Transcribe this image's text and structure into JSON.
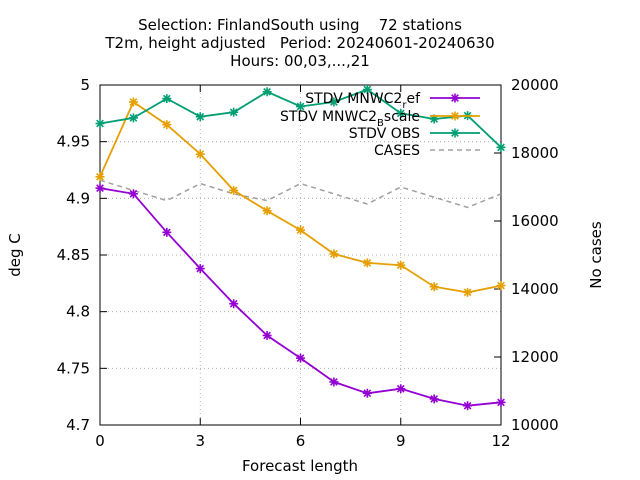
{
  "chart_data": {
    "type": "line",
    "title_lines": [
      "Selection: FinlandSouth using    72 stations",
      "T2m, height adjusted   Period: 20240601-20240630",
      "Hours: 00,03,...,21"
    ],
    "xlabel": "Forecast length",
    "ylabel": "deg C",
    "y2label": "No cases",
    "xlim": [
      0,
      12
    ],
    "ylim": [
      4.7,
      5.0
    ],
    "y2lim": [
      10000,
      20000
    ],
    "xticks": [
      0,
      3,
      6,
      9,
      12
    ],
    "yticks": [
      4.7,
      4.75,
      4.8,
      4.85,
      4.9,
      4.95,
      5.0
    ],
    "ytick_labels": [
      "4.7",
      "4.75",
      "4.8",
      "4.85",
      "4.9",
      "4.95",
      "5"
    ],
    "y2ticks": [
      10000,
      12000,
      14000,
      16000,
      18000,
      20000
    ],
    "grid": true,
    "legend_position": "top-right",
    "x": [
      0,
      1,
      2,
      3,
      4,
      5,
      6,
      7,
      8,
      9,
      10,
      11,
      12
    ],
    "series": [
      {
        "name": "STDV MNWC2_ref",
        "legend_main": "STDV MNWC2",
        "legend_sub": "r",
        "legend_tail": "ef",
        "color": "#9400d3",
        "axis": "y",
        "marker": true,
        "dash": false,
        "values": [
          4.909,
          4.904,
          4.87,
          4.838,
          4.807,
          4.779,
          4.759,
          4.738,
          4.728,
          4.732,
          4.723,
          4.717,
          4.72
        ]
      },
      {
        "name": "STDV MNWC2_Bscale",
        "legend_main": "STDV MNWC2",
        "legend_sub": "B",
        "legend_tail": "scale",
        "color": "#e69f00",
        "axis": "y",
        "marker": true,
        "dash": false,
        "values": [
          4.919,
          4.985,
          4.965,
          4.939,
          4.907,
          4.889,
          4.872,
          4.851,
          4.843,
          4.841,
          4.822,
          4.817,
          4.823
        ]
      },
      {
        "name": "STDV OBS",
        "legend_main": "STDV OBS",
        "legend_sub": "",
        "legend_tail": "",
        "color": "#009e73",
        "axis": "y",
        "marker": true,
        "dash": false,
        "values": [
          4.966,
          4.971,
          4.988,
          4.972,
          4.976,
          4.994,
          4.981,
          4.985,
          4.996,
          4.975,
          4.97,
          4.973,
          4.945
        ]
      },
      {
        "name": "CASES",
        "legend_main": "CASES",
        "legend_sub": "",
        "legend_tail": "",
        "color": "#a0a0a0",
        "axis": "y2",
        "marker": false,
        "dash": true,
        "values": [
          17200,
          16900,
          16600,
          17100,
          16800,
          16600,
          17100,
          16800,
          16500,
          17000,
          16700,
          16400,
          16800
        ]
      }
    ]
  }
}
